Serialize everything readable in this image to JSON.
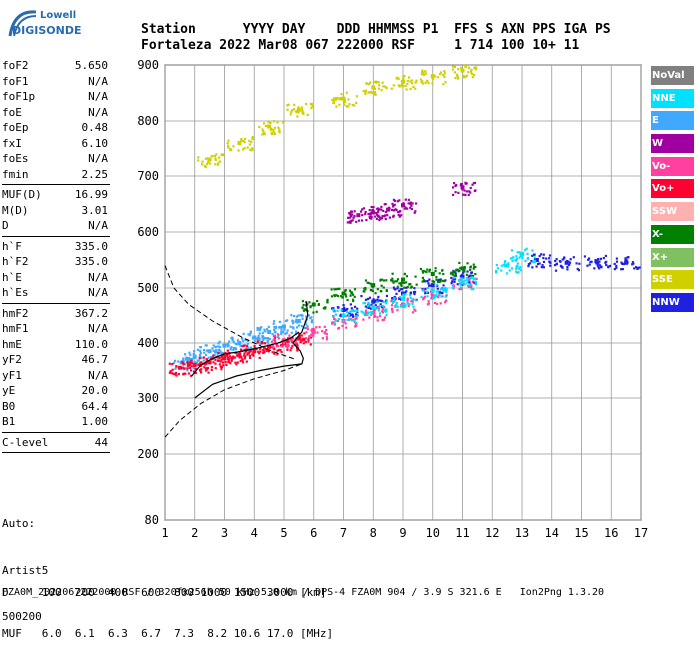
{
  "logo": {
    "line1": "Lowell",
    "line2": "DIGISONDE"
  },
  "header": {
    "labels": "Station      YYYY DAY    DDD HHMMSS P1  FFS S AXN PPS IGA PS",
    "values": "Fortaleza 2022 Mar08 067 222000 RSF     1 714 100 10+ 11"
  },
  "params": [
    {
      "k": "foF2",
      "v": "5.650"
    },
    {
      "k": "foF1",
      "v": "N/A"
    },
    {
      "k": "foF1p",
      "v": "N/A"
    },
    {
      "k": "foE",
      "v": "N/A"
    },
    {
      "k": "foEp",
      "v": "0.48"
    },
    {
      "k": "fxI",
      "v": "6.10"
    },
    {
      "k": "foEs",
      "v": "N/A"
    },
    {
      "k": "fmin",
      "v": "2.25"
    },
    {
      "sep": true
    },
    {
      "k": "MUF(D)",
      "v": "16.99"
    },
    {
      "k": "M(D)",
      "v": "3.01"
    },
    {
      "k": "D",
      "v": "N/A"
    },
    {
      "sep": true
    },
    {
      "k": "h`F",
      "v": "335.0"
    },
    {
      "k": "h`F2",
      "v": "335.0"
    },
    {
      "k": "h`E",
      "v": "N/A"
    },
    {
      "k": "h`Es",
      "v": "N/A"
    },
    {
      "sep": true
    },
    {
      "k": "hmF2",
      "v": "367.2"
    },
    {
      "k": "hmF1",
      "v": "N/A"
    },
    {
      "k": "hmE",
      "v": "110.0"
    },
    {
      "k": "yF2",
      "v": "46.7"
    },
    {
      "k": "yF1",
      "v": "N/A"
    },
    {
      "k": "yE",
      "v": "20.0"
    },
    {
      "k": "B0",
      "v": "64.4"
    },
    {
      "k": "B1",
      "v": "1.00"
    },
    {
      "sep": true
    },
    {
      "k": "C-level",
      "v": "44"
    },
    {
      "sep": true
    }
  ],
  "auto_block": [
    "Auto:",
    "Artist5",
    "500200"
  ],
  "legend": [
    {
      "label": "NoVal",
      "color": "#808080"
    },
    {
      "label": "NNE",
      "color": "#00e0ff"
    },
    {
      "label": "E",
      "color": "#40a8ff"
    },
    {
      "label": "W",
      "color": "#a000a0"
    },
    {
      "label": "Vo-",
      "color": "#ff40a0"
    },
    {
      "label": "Vo+",
      "color": "#ff0030"
    },
    {
      "label": "SSW",
      "color": "#ffb0b0"
    },
    {
      "label": "X-",
      "color": "#008000"
    },
    {
      "label": "X+",
      "color": "#80c060"
    },
    {
      "label": "SSE",
      "color": "#d0d000"
    },
    {
      "label": "NNW",
      "color": "#2020e0"
    }
  ],
  "footer": {
    "line1": "D     100  200  400  600  800 1000 1500 3000 [km]",
    "line2": "MUF   6.0  6.1  6.3  6.7  7.3  8.2 10.6 17.0 [MHz]",
    "line3": "FZA0M_2022067222000.RSF / 320fx256h 50 kHz 5.0 km / DPS-4 FZA0M 904 / 3.9 S 321.6 E   Ion2Png 1.3.20"
  },
  "chart_data": {
    "type": "scatter",
    "title": "",
    "xlabel": "",
    "ylabel": "",
    "xlim": [
      1,
      17
    ],
    "ylim": [
      80,
      900
    ],
    "x_ticks": [
      1,
      2,
      3,
      4,
      5,
      6,
      7,
      8,
      9,
      10,
      11,
      12,
      13,
      14,
      15,
      16,
      17
    ],
    "y_ticks": [
      80,
      200,
      300,
      400,
      500,
      600,
      700,
      800,
      900
    ],
    "grid": true,
    "legend_position": "right",
    "series": [
      {
        "name": "E",
        "color": "#40a8ff",
        "x": [
          1.6,
          2.0,
          2.5,
          3.0,
          3.5,
          4.0,
          4.5,
          5.0,
          5.5
        ],
        "y": [
          365,
          375,
          385,
          395,
          400,
          410,
          420,
          430,
          440
        ]
      },
      {
        "name": "Vo+",
        "color": "#ff0030",
        "x": [
          1.5,
          2.0,
          2.5,
          3.0,
          3.5,
          4.0,
          4.5,
          5.0,
          5.5
        ],
        "y": [
          355,
          360,
          365,
          372,
          378,
          385,
          393,
          400,
          408
        ]
      },
      {
        "name": "Vo-",
        "color": "#ff40a0",
        "x": [
          5.0,
          6.0,
          7.0,
          8.0,
          9.0,
          10.0,
          11.0
        ],
        "y": [
          405,
          420,
          440,
          455,
          470,
          485,
          510
        ]
      },
      {
        "name": "NNW",
        "color": "#2020e0",
        "x": [
          7.0,
          8.0,
          9.0,
          10.0,
          11.0,
          13.5,
          14.5,
          15.5,
          16.5
        ],
        "y": [
          460,
          475,
          490,
          505,
          520,
          550,
          545,
          548,
          545
        ]
      },
      {
        "name": "X-",
        "color": "#008000",
        "x": [
          6.0,
          7.0,
          8.0,
          9.0,
          10.0,
          11.0
        ],
        "y": [
          470,
          490,
          505,
          515,
          525,
          535
        ]
      },
      {
        "name": "NNE",
        "color": "#00e0ff",
        "x": [
          7.0,
          8.0,
          9.0,
          10.0,
          11.0,
          12.5,
          13.0
        ],
        "y": [
          450,
          465,
          480,
          495,
          510,
          540,
          560
        ]
      },
      {
        "name": "SSE",
        "color": "#d0d000",
        "x": [
          2.5,
          3.5,
          4.5,
          5.5,
          7.0,
          8.0,
          9.0,
          10.0,
          11.0
        ],
        "y": [
          730,
          760,
          790,
          820,
          840,
          860,
          870,
          880,
          890
        ]
      },
      {
        "name": "W",
        "color": "#a000a0",
        "x": [
          7.5,
          8.0,
          8.5,
          9.0,
          11.0
        ],
        "y": [
          630,
          635,
          640,
          648,
          680
        ]
      }
    ]
  }
}
